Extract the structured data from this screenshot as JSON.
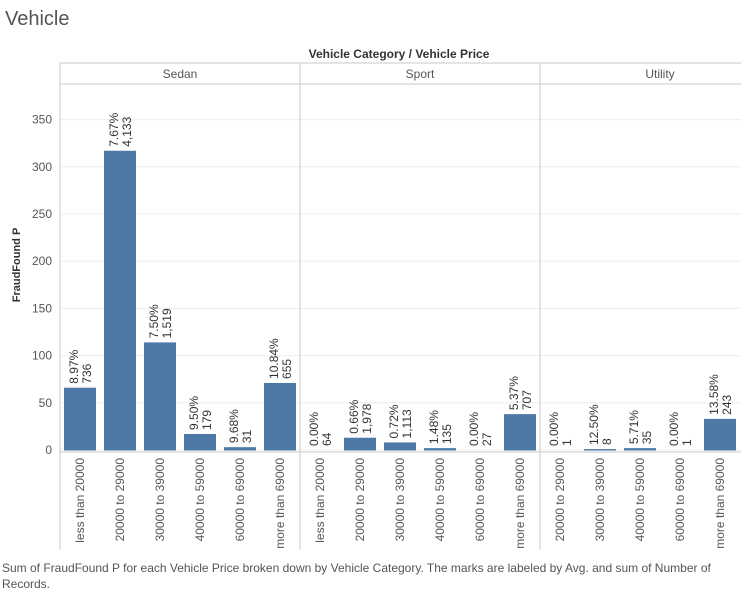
{
  "page": {
    "title": "Vehicle",
    "caption": "Sum of FraudFound P for each Vehicle Price broken down by Vehicle Category.  The marks are labeled by Avg. and sum of Number of Records."
  },
  "colors": {
    "bar": "#4e79a7",
    "grid": "#eeeeee",
    "axis": "#c8c8c8",
    "text": "#555555"
  },
  "chart_data": {
    "type": "bar",
    "title": "",
    "header_label": "Vehicle Category / Vehicle Price",
    "ylabel": "FraudFound P",
    "xlabel": "",
    "ylim": [
      0,
      350
    ],
    "yticks": [
      0,
      50,
      100,
      150,
      200,
      250,
      300,
      350
    ],
    "grid": true,
    "legend": "none",
    "panels": [
      {
        "category": "Sedan",
        "bars": [
          {
            "price": "less than 20000",
            "value": 66,
            "pct": "8.97%",
            "records": "736"
          },
          {
            "price": "20000 to 29000",
            "value": 317,
            "pct": "7.67%",
            "records": "4,133"
          },
          {
            "price": "30000 to 39000",
            "value": 114,
            "pct": "7.50%",
            "records": "1,519"
          },
          {
            "price": "40000 to 59000",
            "value": 17,
            "pct": "9.50%",
            "records": "179"
          },
          {
            "price": "60000 to 69000",
            "value": 3,
            "pct": "9.68%",
            "records": "31"
          },
          {
            "price": "more than 69000",
            "value": 71,
            "pct": "10.84%",
            "records": "655"
          }
        ]
      },
      {
        "category": "Sport",
        "bars": [
          {
            "price": "less than 20000",
            "value": 0,
            "pct": "0.00%",
            "records": "64"
          },
          {
            "price": "20000 to 29000",
            "value": 13,
            "pct": "0.66%",
            "records": "1,978"
          },
          {
            "price": "30000 to 39000",
            "value": 8,
            "pct": "0.72%",
            "records": "1,113"
          },
          {
            "price": "40000 to 59000",
            "value": 2,
            "pct": "1.48%",
            "records": "135"
          },
          {
            "price": "60000 to 69000",
            "value": 0,
            "pct": "0.00%",
            "records": "27"
          },
          {
            "price": "more than 69000",
            "value": 38,
            "pct": "5.37%",
            "records": "707"
          }
        ]
      },
      {
        "category": "Utility",
        "bars": [
          {
            "price": "20000 to 29000",
            "value": 0,
            "pct": "0.00%",
            "records": "1"
          },
          {
            "price": "30000 to 39000",
            "value": 1,
            "pct": "12.50%",
            "records": "8"
          },
          {
            "price": "40000 to 59000",
            "value": 2,
            "pct": "5.71%",
            "records": "35"
          },
          {
            "price": "60000 to 69000",
            "value": 0,
            "pct": "0.00%",
            "records": "1"
          },
          {
            "price": "more than 69000",
            "value": 33,
            "pct": "13.58%",
            "records": "243"
          }
        ]
      }
    ]
  }
}
